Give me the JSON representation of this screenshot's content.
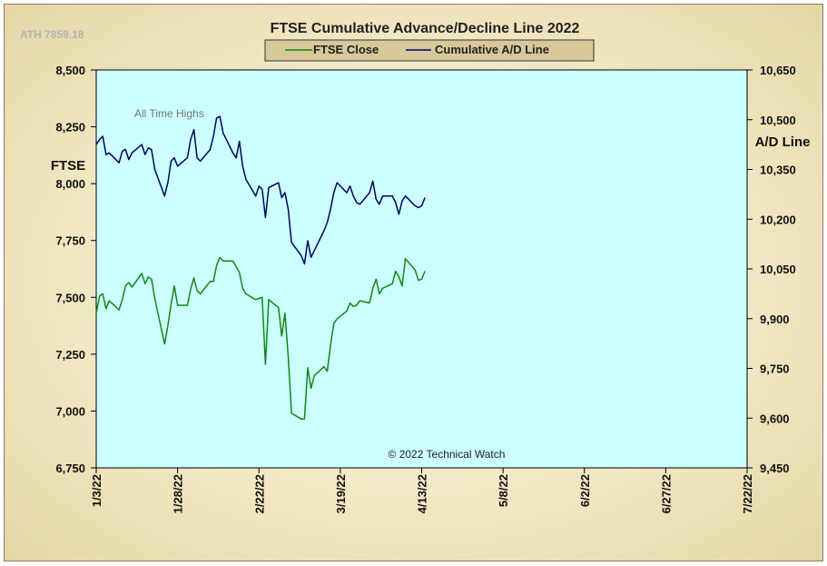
{
  "chart_data": {
    "type": "line",
    "title": "FTSE Cumulative  Advance/Decline  Line 2022",
    "ath_label": "ATH 7859.18",
    "annotation": "All Time Highs",
    "copyright": "© 2022 Technical Watch",
    "legend": {
      "placement": "top-center"
    },
    "grid": false,
    "xlim": [
      "1/3/22",
      "7/22/22"
    ],
    "x_ticks": [
      "1/3/22",
      "1/28/22",
      "2/22/22",
      "3/19/22",
      "4/13/22",
      "5/8/22",
      "6/2/22",
      "6/27/22",
      "7/22/22"
    ],
    "y_left": {
      "label": "FTSE",
      "lim": [
        6750,
        8500
      ],
      "ticks": [
        "6,750",
        "7,000",
        "7,250",
        "7,500",
        "7,750",
        "8,000",
        "8,250",
        "8,500"
      ]
    },
    "y_right": {
      "label": "A/D Line",
      "lim": [
        9450,
        10650
      ],
      "ticks": [
        "9,450",
        "9,600",
        "9,750",
        "9,900",
        "10,050",
        "10,200",
        "10,350",
        "10,500",
        "10,650"
      ]
    },
    "series": [
      {
        "name": "FTSE Close",
        "axis": "left",
        "color": "#118811",
        "points": [
          [
            "2022-01-03",
            7430
          ],
          [
            "2022-01-04",
            7505
          ],
          [
            "2022-01-05",
            7515
          ],
          [
            "2022-01-06",
            7450
          ],
          [
            "2022-01-07",
            7485
          ],
          [
            "2022-01-10",
            7445
          ],
          [
            "2022-01-11",
            7490
          ],
          [
            "2022-01-12",
            7550
          ],
          [
            "2022-01-13",
            7565
          ],
          [
            "2022-01-14",
            7545
          ],
          [
            "2022-01-17",
            7605
          ],
          [
            "2022-01-18",
            7560
          ],
          [
            "2022-01-19",
            7590
          ],
          [
            "2022-01-20",
            7580
          ],
          [
            "2022-01-21",
            7495
          ],
          [
            "2022-01-24",
            7295
          ],
          [
            "2022-01-25",
            7375
          ],
          [
            "2022-01-26",
            7470
          ],
          [
            "2022-01-27",
            7550
          ],
          [
            "2022-01-28",
            7465
          ],
          [
            "2022-01-31",
            7465
          ],
          [
            "2022-02-01",
            7535
          ],
          [
            "2022-02-02",
            7585
          ],
          [
            "2022-02-03",
            7530
          ],
          [
            "2022-02-04",
            7515
          ],
          [
            "2022-02-07",
            7570
          ],
          [
            "2022-02-08",
            7570
          ],
          [
            "2022-02-09",
            7640
          ],
          [
            "2022-02-10",
            7675
          ],
          [
            "2022-02-11",
            7660
          ],
          [
            "2022-02-14",
            7660
          ],
          [
            "2022-02-15",
            7635
          ],
          [
            "2022-02-16",
            7610
          ],
          [
            "2022-02-17",
            7540
          ],
          [
            "2022-02-18",
            7515
          ],
          [
            "2022-02-21",
            7490
          ],
          [
            "2022-02-22",
            7495
          ],
          [
            "2022-02-23",
            7500
          ],
          [
            "2022-02-24",
            7205
          ],
          [
            "2022-02-25",
            7490
          ],
          [
            "2022-02-28",
            7455
          ],
          [
            "2022-03-01",
            7330
          ],
          [
            "2022-03-02",
            7430
          ],
          [
            "2022-03-03",
            7240
          ],
          [
            "2022-03-04",
            6990
          ],
          [
            "2022-03-07",
            6965
          ],
          [
            "2022-03-08",
            6965
          ],
          [
            "2022-03-09",
            7190
          ],
          [
            "2022-03-10",
            7100
          ],
          [
            "2022-03-11",
            7155
          ],
          [
            "2022-03-14",
            7195
          ],
          [
            "2022-03-15",
            7175
          ],
          [
            "2022-03-16",
            7290
          ],
          [
            "2022-03-17",
            7385
          ],
          [
            "2022-03-18",
            7405
          ],
          [
            "2022-03-21",
            7440
          ],
          [
            "2022-03-22",
            7475
          ],
          [
            "2022-03-23",
            7460
          ],
          [
            "2022-03-24",
            7465
          ],
          [
            "2022-03-25",
            7485
          ],
          [
            "2022-03-28",
            7475
          ],
          [
            "2022-03-29",
            7540
          ],
          [
            "2022-03-30",
            7580
          ],
          [
            "2022-03-31",
            7515
          ],
          [
            "2022-04-01",
            7540
          ],
          [
            "2022-04-04",
            7560
          ],
          [
            "2022-04-05",
            7615
          ],
          [
            "2022-04-06",
            7590
          ],
          [
            "2022-04-07",
            7550
          ],
          [
            "2022-04-08",
            7670
          ],
          [
            "2022-04-11",
            7620
          ],
          [
            "2022-04-12",
            7575
          ],
          [
            "2022-04-13",
            7580
          ],
          [
            "2022-04-14",
            7615
          ]
        ]
      },
      {
        "name": "Cumulative A/D Line",
        "axis": "right",
        "color": "#000066",
        "points": [
          [
            "2022-01-03",
            10425
          ],
          [
            "2022-01-04",
            10440
          ],
          [
            "2022-01-05",
            10450
          ],
          [
            "2022-01-06",
            10395
          ],
          [
            "2022-01-07",
            10400
          ],
          [
            "2022-01-10",
            10370
          ],
          [
            "2022-01-11",
            10405
          ],
          [
            "2022-01-12",
            10410
          ],
          [
            "2022-01-13",
            10380
          ],
          [
            "2022-01-14",
            10400
          ],
          [
            "2022-01-17",
            10425
          ],
          [
            "2022-01-18",
            10395
          ],
          [
            "2022-01-19",
            10415
          ],
          [
            "2022-01-20",
            10410
          ],
          [
            "2022-01-21",
            10350
          ],
          [
            "2022-01-24",
            10270
          ],
          [
            "2022-01-25",
            10310
          ],
          [
            "2022-01-26",
            10375
          ],
          [
            "2022-01-27",
            10385
          ],
          [
            "2022-01-28",
            10360
          ],
          [
            "2022-01-31",
            10385
          ],
          [
            "2022-02-01",
            10440
          ],
          [
            "2022-02-02",
            10470
          ],
          [
            "2022-02-03",
            10385
          ],
          [
            "2022-02-04",
            10375
          ],
          [
            "2022-02-07",
            10410
          ],
          [
            "2022-02-08",
            10450
          ],
          [
            "2022-02-09",
            10505
          ],
          [
            "2022-02-10",
            10510
          ],
          [
            "2022-02-11",
            10460
          ],
          [
            "2022-02-14",
            10400
          ],
          [
            "2022-02-15",
            10385
          ],
          [
            "2022-02-16",
            10435
          ],
          [
            "2022-02-17",
            10360
          ],
          [
            "2022-02-18",
            10320
          ],
          [
            "2022-02-21",
            10270
          ],
          [
            "2022-02-22",
            10300
          ],
          [
            "2022-02-23",
            10290
          ],
          [
            "2022-02-24",
            10205
          ],
          [
            "2022-02-25",
            10295
          ],
          [
            "2022-02-28",
            10310
          ],
          [
            "2022-03-01",
            10265
          ],
          [
            "2022-03-02",
            10280
          ],
          [
            "2022-03-03",
            10230
          ],
          [
            "2022-03-04",
            10130
          ],
          [
            "2022-03-07",
            10090
          ],
          [
            "2022-03-08",
            10065
          ],
          [
            "2022-03-09",
            10135
          ],
          [
            "2022-03-10",
            10085
          ],
          [
            "2022-03-11",
            10105
          ],
          [
            "2022-03-14",
            10165
          ],
          [
            "2022-03-15",
            10190
          ],
          [
            "2022-03-16",
            10230
          ],
          [
            "2022-03-17",
            10280
          ],
          [
            "2022-03-18",
            10310
          ],
          [
            "2022-03-21",
            10280
          ],
          [
            "2022-03-22",
            10300
          ],
          [
            "2022-03-23",
            10270
          ],
          [
            "2022-03-24",
            10250
          ],
          [
            "2022-03-25",
            10245
          ],
          [
            "2022-03-28",
            10280
          ],
          [
            "2022-03-29",
            10315
          ],
          [
            "2022-03-30",
            10260
          ],
          [
            "2022-03-31",
            10245
          ],
          [
            "2022-04-01",
            10270
          ],
          [
            "2022-04-04",
            10270
          ],
          [
            "2022-04-05",
            10250
          ],
          [
            "2022-04-06",
            10215
          ],
          [
            "2022-04-07",
            10255
          ],
          [
            "2022-04-08",
            10270
          ],
          [
            "2022-04-11",
            10240
          ],
          [
            "2022-04-12",
            10235
          ],
          [
            "2022-04-13",
            10240
          ],
          [
            "2022-04-14",
            10265
          ]
        ]
      }
    ]
  }
}
